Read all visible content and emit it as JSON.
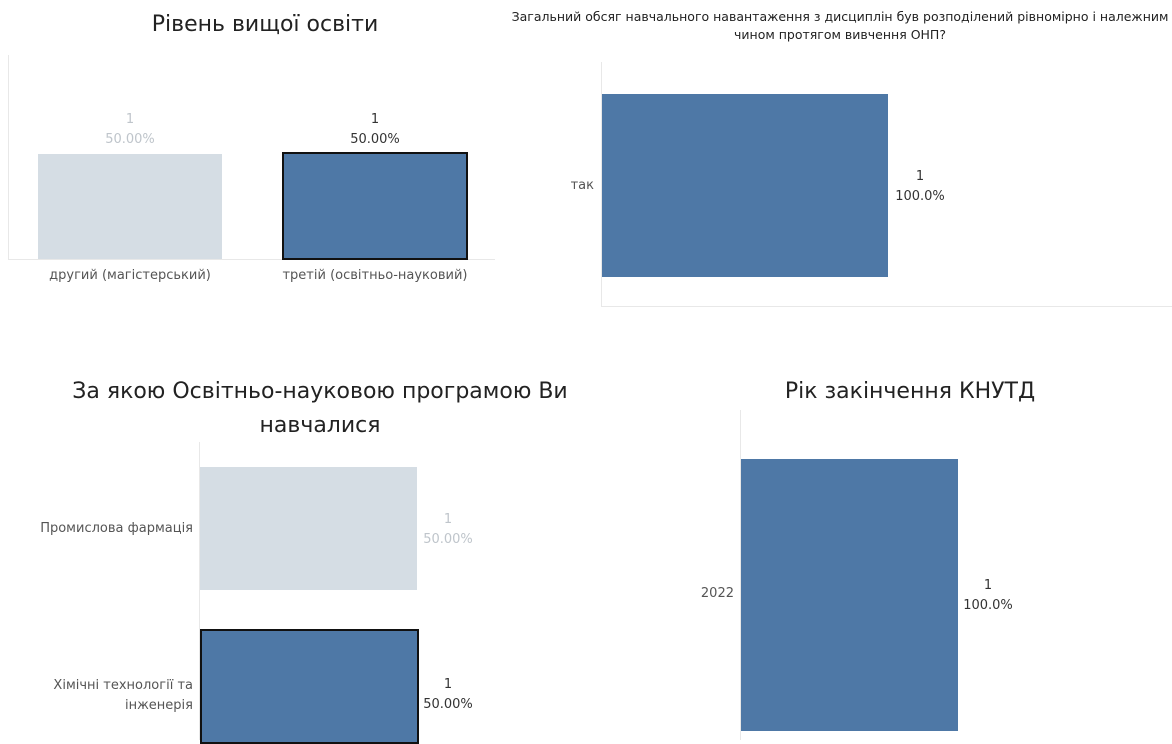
{
  "chart_data": [
    {
      "type": "bar",
      "title": "Рівень вищої освіти",
      "categories": [
        "другий (магістерський)",
        "третій (освітньо-науковий)"
      ],
      "values": [
        1,
        1
      ],
      "percent_labels": [
        "50.00%",
        "50.00%"
      ],
      "selected": [
        false,
        true
      ]
    },
    {
      "type": "bar",
      "orientation": "horizontal",
      "title": "Загальний обсяг навчального навантаження з дисциплін був розподілений рівномірно і належним чином протягом вивчення ОНП?",
      "categories": [
        "так"
      ],
      "values": [
        1
      ],
      "percent_labels": [
        "100.0%"
      ],
      "selected": [
        true
      ]
    },
    {
      "type": "bar",
      "orientation": "horizontal",
      "title": "За якою Освітньо-науковою програмою Ви навчалися",
      "categories": [
        "Промислова фармація",
        "Хімічні технології та інженерія"
      ],
      "values": [
        1,
        1
      ],
      "percent_labels": [
        "50.00%",
        "50.00%"
      ],
      "selected": [
        false,
        true
      ]
    },
    {
      "type": "bar",
      "orientation": "horizontal",
      "title": "Рік закінчення КНУТД",
      "categories": [
        "2022"
      ],
      "values": [
        1
      ],
      "percent_labels": [
        "100.0%"
      ],
      "selected": [
        true
      ]
    }
  ],
  "colors": {
    "selected_bar": "#4e78a6",
    "unselected_bar": "#d5dde4",
    "selected_label": "#333333",
    "unselected_label": "#bfc5cb"
  }
}
